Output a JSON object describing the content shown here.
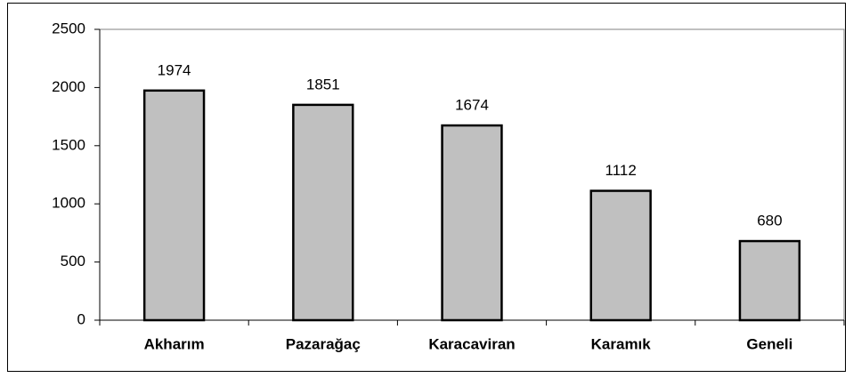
{
  "chart_data": {
    "type": "bar",
    "categories": [
      "Akharım",
      "Pazarağaç",
      "Karacaviran",
      "Karamık",
      "Geneli"
    ],
    "values": [
      1974,
      1851,
      1674,
      1112,
      680
    ],
    "color": "#c0c0c0",
    "ylim": [
      0,
      2500
    ],
    "yticks": [
      0,
      500,
      1000,
      1500,
      2000,
      2500
    ]
  }
}
